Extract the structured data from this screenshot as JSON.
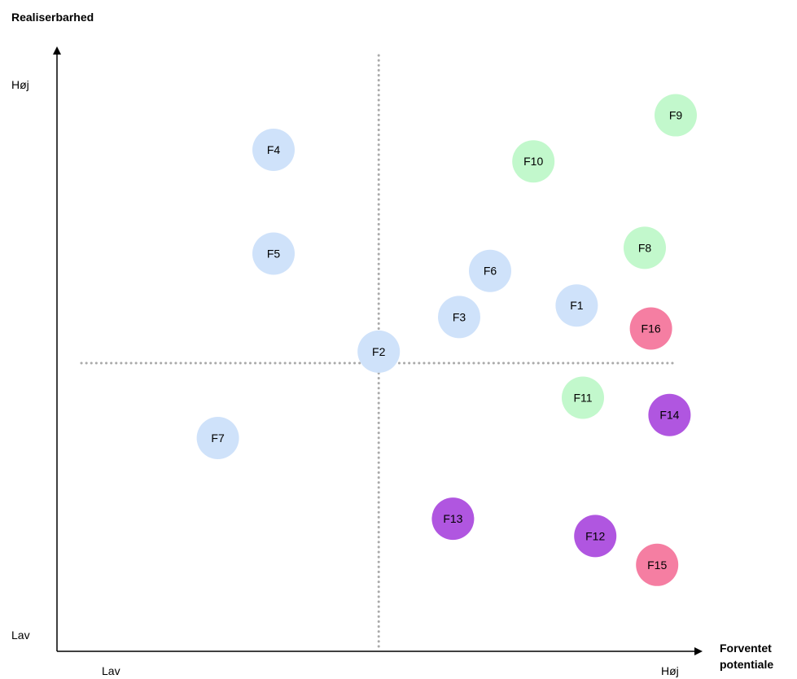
{
  "chart_data": {
    "type": "scatter",
    "ylabel": "Realiserbarhed",
    "xlabel_lines": [
      "Forventet",
      "potentiale"
    ],
    "x_ticks": {
      "low": "Lav",
      "high": "Høj"
    },
    "y_ticks": {
      "low": "Lav",
      "high": "Høj"
    },
    "xlim": [
      0,
      10
    ],
    "ylim": [
      0,
      10
    ],
    "quadrant_divider": {
      "x": 5.2,
      "y": 5.0,
      "style": "dotted",
      "color": "#aaaaaa"
    },
    "colors": {
      "blue": "#cfe2fa",
      "green": "#c2f8cc",
      "pink": "#f57ea2",
      "purple": "#b056e0"
    },
    "points": [
      {
        "label": "F1",
        "x": 8.4,
        "y": 6.0,
        "color": "blue"
      },
      {
        "label": "F2",
        "x": 5.2,
        "y": 5.2,
        "color": "blue"
      },
      {
        "label": "F3",
        "x": 6.5,
        "y": 5.8,
        "color": "blue"
      },
      {
        "label": "F4",
        "x": 3.5,
        "y": 8.7,
        "color": "blue"
      },
      {
        "label": "F5",
        "x": 3.5,
        "y": 6.9,
        "color": "blue"
      },
      {
        "label": "F6",
        "x": 7.0,
        "y": 6.6,
        "color": "blue"
      },
      {
        "label": "F7",
        "x": 2.6,
        "y": 3.7,
        "color": "blue"
      },
      {
        "label": "F8",
        "x": 9.5,
        "y": 7.0,
        "color": "green"
      },
      {
        "label": "F9",
        "x": 10.0,
        "y": 9.3,
        "color": "green"
      },
      {
        "label": "F10",
        "x": 7.7,
        "y": 8.5,
        "color": "green"
      },
      {
        "label": "F11",
        "x": 8.5,
        "y": 4.4,
        "color": "green"
      },
      {
        "label": "F12",
        "x": 8.7,
        "y": 2.0,
        "color": "purple"
      },
      {
        "label": "F13",
        "x": 6.4,
        "y": 2.3,
        "color": "purple"
      },
      {
        "label": "F14",
        "x": 9.9,
        "y": 4.1,
        "color": "purple"
      },
      {
        "label": "F15",
        "x": 9.7,
        "y": 1.5,
        "color": "pink"
      },
      {
        "label": "F16",
        "x": 9.6,
        "y": 5.6,
        "color": "pink"
      }
    ]
  }
}
